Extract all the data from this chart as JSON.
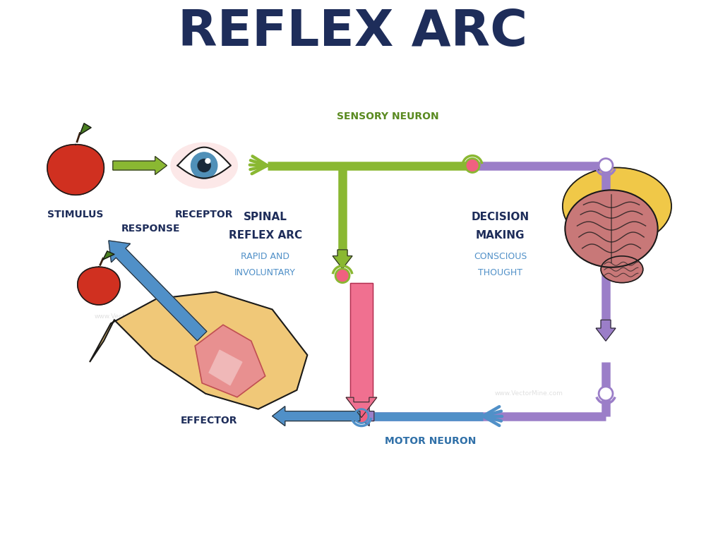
{
  "title": "REFLEX ARC",
  "title_color": "#1e2d5a",
  "title_fontsize": 52,
  "bg_color": "#ffffff",
  "labels": {
    "stimulus": "STIMULUS",
    "receptor": "RECEPTOR",
    "sensory_neuron": "SENSORY NEURON",
    "spinal_reflex_line1": "SPINAL",
    "spinal_reflex_line2": "REFLEX ARC",
    "rapid": "RAPID AND",
    "involuntary": "INVOLUNTARY",
    "decision_line1": "DECISION",
    "decision_line2": "MAKING",
    "conscious": "CONSCIOUS",
    "thought": "THOUGHT",
    "motor_neuron": "MOTOR NEURON",
    "response": "RESPONSE",
    "effector": "EFFECTOR"
  },
  "colors": {
    "green": "#8ab832",
    "green_dark": "#6a9020",
    "pink": "#f07090",
    "pink_dark": "#d04060",
    "blue": "#5090c8",
    "blue_dark": "#3070a8",
    "purple": "#9b7ec8",
    "purple_dark": "#7b5ea8",
    "label_dark": "#1e2d5a",
    "label_green": "#5a8a20",
    "label_blue": "#3070a8",
    "apple_red": "#d03020",
    "apple_green": "#4a8020",
    "eye_iris": "#5090b8",
    "skin": "#f0c878",
    "muscle_pink": "#e89090",
    "brain_pink": "#c87878",
    "synapse_pink": "#f06080",
    "hair_yellow": "#f0c848"
  },
  "watermark": "www.VectorMine.com"
}
